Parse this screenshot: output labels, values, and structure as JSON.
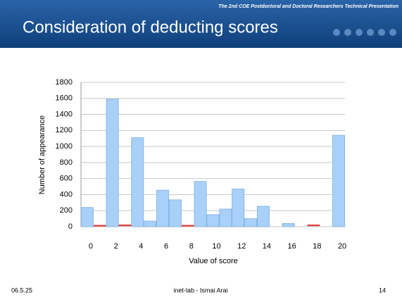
{
  "header": {
    "subtitle": "The 2nd COE Postdoctoral and Doctoral Researchers Technical Presentation",
    "title": "Consideration of deducting scores"
  },
  "chart_data": {
    "type": "bar",
    "categories": [
      "0",
      null,
      "2",
      null,
      "4",
      null,
      "6",
      null,
      "8",
      null,
      "10",
      null,
      "12",
      null,
      "14",
      null,
      "16",
      null,
      "18",
      null,
      "20"
    ],
    "values": [
      240,
      5,
      1590,
      10,
      1110,
      70,
      455,
      335,
      5,
      565,
      150,
      220,
      470,
      100,
      255,
      0,
      40,
      0,
      10,
      0,
      1140
    ],
    "colors": [
      "#a8d0f8",
      "#e04040",
      "#a8d0f8",
      "#e04040",
      "#a8d0f8",
      "#a8d0f8",
      "#a8d0f8",
      "#a8d0f8",
      "#e04040",
      "#a8d0f8",
      "#a8d0f8",
      "#a8d0f8",
      "#a8d0f8",
      "#a8d0f8",
      "#a8d0f8",
      "#a8d0f8",
      "#a8d0f8",
      "#a8d0f8",
      "#e04040",
      "#a8d0f8",
      "#a8d0f8"
    ],
    "xlabel": "Value of score",
    "ylabel": "Number of appearance",
    "ylim": [
      0,
      1800
    ],
    "yticks": [
      0,
      200,
      400,
      600,
      800,
      1000,
      1200,
      1400,
      1600,
      1800
    ],
    "grid": true
  },
  "footer": {
    "date": "06.5.25",
    "author": "inet-lab - Ismai Arai",
    "page": "14"
  }
}
